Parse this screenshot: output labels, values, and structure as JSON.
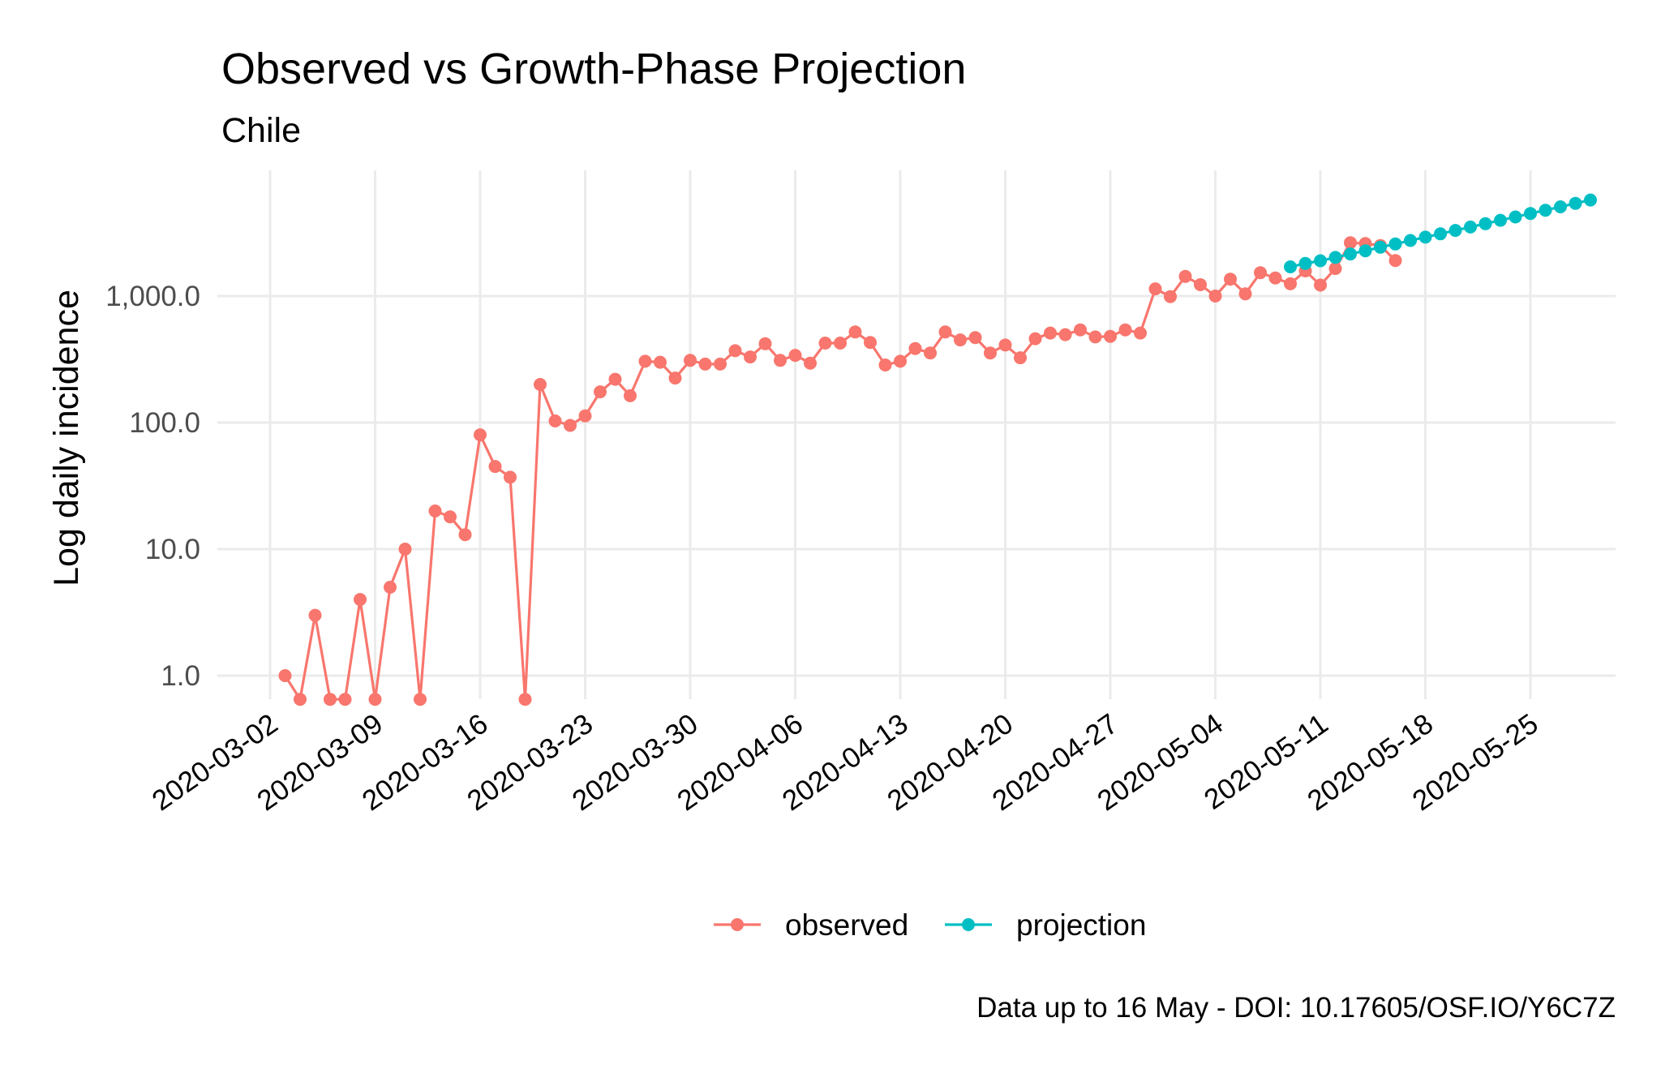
{
  "chart_data": {
    "type": "line",
    "title": "Observed vs Growth-Phase Projection",
    "subtitle": "Chile",
    "xlabel": "",
    "ylabel": "Log daily incidence",
    "caption": "Data up to 16 May - DOI: 10.17605/OSF.IO/Y6C7Z",
    "x_start": "2020-03-03",
    "x_ticks": [
      "2020-03-02",
      "2020-03-09",
      "2020-03-16",
      "2020-03-23",
      "2020-03-30",
      "2020-04-06",
      "2020-04-13",
      "2020-04-20",
      "2020-04-27",
      "2020-05-04",
      "2020-05-11",
      "2020-05-18",
      "2020-05-25"
    ],
    "y_scale": "log10",
    "y_ticks": [
      1,
      10,
      100,
      1000
    ],
    "y_tick_labels": [
      "1.0",
      "10.0",
      "100.0",
      "1,000.0"
    ],
    "ylim": [
      0.65,
      9000
    ],
    "legend_position": "bottom",
    "series": [
      {
        "name": "observed",
        "color": "#F8766D",
        "start_day": 1,
        "values": [
          1,
          0.65,
          3,
          0.65,
          0.65,
          4,
          0.65,
          5,
          10,
          0.65,
          20,
          18,
          13,
          80,
          45,
          37,
          0.65,
          200,
          103,
          95,
          113,
          175,
          220,
          163,
          305,
          300,
          225,
          310,
          290,
          290,
          370,
          330,
          420,
          310,
          340,
          295,
          425,
          425,
          520,
          430,
          285,
          305,
          385,
          355,
          520,
          450,
          470,
          355,
          410,
          325,
          460,
          510,
          495,
          540,
          475,
          480,
          540,
          510,
          1140,
          990,
          1430,
          1230,
          1000,
          1360,
          1040,
          1530,
          1390,
          1250,
          1580,
          1220,
          1650,
          2640,
          2600,
          2510,
          1910
        ]
      },
      {
        "name": "projection",
        "color": "#00BFC4",
        "start_day": 68,
        "values": [
          1700,
          1810,
          1900,
          2020,
          2150,
          2280,
          2430,
          2580,
          2750,
          2920,
          3100,
          3300,
          3510,
          3730,
          3970,
          4220,
          4490,
          4770,
          5070,
          5400,
          5740
        ]
      }
    ]
  }
}
